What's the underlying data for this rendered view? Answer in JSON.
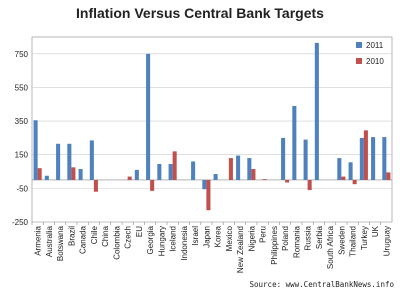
{
  "chart_data": {
    "type": "bar",
    "title": "Inflation Versus Central Bank Targets",
    "source": "Source: www.CentralBankNews.info",
    "categories": [
      "Armenia",
      "Australia",
      "Botswana",
      "Brazil",
      "Canada",
      "Chile",
      "China",
      "Colombia",
      "Czech",
      "EU",
      "Georgia",
      "Hungary",
      "Iceland",
      "Indonesia",
      "Israel",
      "Japan",
      "Korea",
      "Mexico",
      "New Zealand",
      "Nigeria",
      "Peru",
      "Philippines",
      "Poland",
      "Romania",
      "Russia",
      "Serbia",
      "South Africa",
      "Sweden",
      "Thailand",
      "Turkey",
      "UK",
      "Uruguay"
    ],
    "series": [
      {
        "name": "2011",
        "color": "#4f81bd",
        "values": [
          355,
          25,
          215,
          215,
          65,
          235,
          null,
          null,
          null,
          60,
          750,
          95,
          95,
          null,
          110,
          -55,
          35,
          null,
          145,
          130,
          null,
          null,
          250,
          440,
          240,
          815,
          null,
          130,
          105,
          250,
          255,
          255
        ]
      },
      {
        "name": "2010",
        "color": "#c0504d",
        "values": [
          70,
          null,
          null,
          75,
          null,
          -70,
          null,
          null,
          20,
          null,
          -65,
          null,
          170,
          null,
          null,
          -180,
          null,
          130,
          null,
          65,
          5,
          null,
          -15,
          null,
          -60,
          null,
          null,
          20,
          -25,
          295,
          null,
          45
        ]
      }
    ],
    "ylim": [
      -250,
      850
    ],
    "yticks": [
      -250,
      -50,
      150,
      350,
      550,
      750
    ],
    "grid": true,
    "legend": "top-right"
  }
}
